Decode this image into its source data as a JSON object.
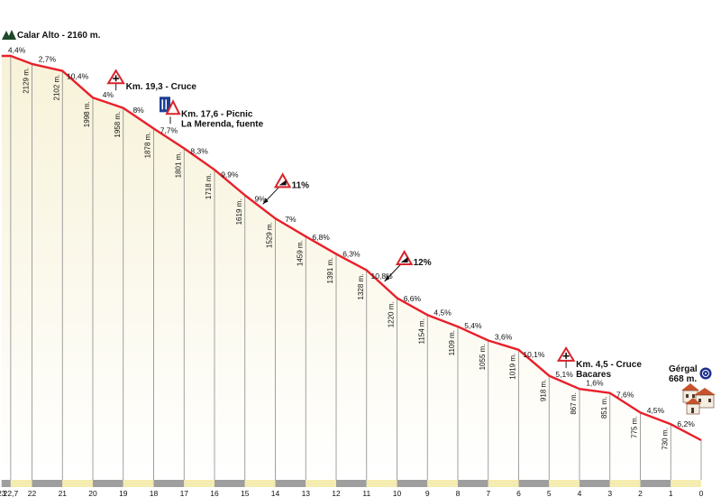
{
  "summit": {
    "label": "Calar Alto - 2160 m."
  },
  "town": {
    "name": "Gérgal",
    "altitude": "668 m."
  },
  "colors": {
    "profile_line": "#e8202a",
    "fill_top": "#f7f2d8",
    "fill_bottom": "#ffffff",
    "grid": "#8a8a8a",
    "base_gray": "#9e9e9e",
    "base_yellow": "#f4ecb0"
  },
  "chart_data": {
    "type": "area",
    "title": "Calar Alto - 2160 m.",
    "xlabel": "",
    "ylabel": "",
    "x_reversed": true,
    "xlim": [
      0,
      23.3
    ],
    "ylim": [
      0,
      2250
    ],
    "km_ticks": [
      "23",
      "22,7",
      "22",
      "21",
      "20",
      "19",
      "18",
      "17",
      "16",
      "15",
      "14",
      "13",
      "12",
      "11",
      "10",
      "9",
      "8",
      "7",
      "6",
      "5",
      "4",
      "3",
      "2",
      "1",
      "0"
    ],
    "km_values": [
      23,
      22.7,
      22,
      21,
      20,
      19,
      18,
      17,
      16,
      15,
      14,
      13,
      12,
      11,
      10,
      9,
      8,
      7,
      6,
      5,
      4,
      3,
      2,
      1,
      0
    ],
    "altitudes": [
      2160,
      2160,
      2129,
      2102,
      1998,
      1958,
      1878,
      1801,
      1718,
      1619,
      1529,
      1459,
      1391,
      1328,
      1220,
      1154,
      1109,
      1055,
      1019,
      918,
      867,
      851,
      775,
      730,
      668
    ],
    "altitude_labels": [
      {
        "km": 22,
        "text": "2129 m."
      },
      {
        "km": 21,
        "text": "2102 m."
      },
      {
        "km": 20,
        "text": "1998 m."
      },
      {
        "km": 19,
        "text": "1958 m."
      },
      {
        "km": 18,
        "text": "1878 m."
      },
      {
        "km": 17,
        "text": "1801 m."
      },
      {
        "km": 16,
        "text": "1718 m."
      },
      {
        "km": 15,
        "text": "1619 m."
      },
      {
        "km": 14,
        "text": "1529 m."
      },
      {
        "km": 13,
        "text": "1459 m."
      },
      {
        "km": 12,
        "text": "1391 m."
      },
      {
        "km": 11,
        "text": "1328 m."
      },
      {
        "km": 10,
        "text": "1220 m."
      },
      {
        "km": 9,
        "text": "1154 m."
      },
      {
        "km": 8,
        "text": "1109 m."
      },
      {
        "km": 7,
        "text": "1055 m."
      },
      {
        "km": 6,
        "text": "1019 m."
      },
      {
        "km": 5,
        "text": "918 m."
      },
      {
        "km": 4,
        "text": "867 m."
      },
      {
        "km": 3,
        "text": "851 m."
      },
      {
        "km": 2,
        "text": "775 m."
      },
      {
        "km": 1,
        "text": "730 m."
      }
    ],
    "gradients": [
      {
        "km": 22.5,
        "text": "4,4%"
      },
      {
        "km": 21.5,
        "text": "2,7%"
      },
      {
        "km": 20.5,
        "text": "10,4%"
      },
      {
        "km": 19.5,
        "text": "4%"
      },
      {
        "km": 18.5,
        "text": "8%"
      },
      {
        "km": 17.5,
        "text": "7,7%"
      },
      {
        "km": 16.5,
        "text": "8,3%"
      },
      {
        "km": 15.5,
        "text": "9,9%"
      },
      {
        "km": 14.5,
        "text": "9%"
      },
      {
        "km": 13.5,
        "text": "7%"
      },
      {
        "km": 12.5,
        "text": "6,8%"
      },
      {
        "km": 11.5,
        "text": "6,3%"
      },
      {
        "km": 10.5,
        "text": "10,8%"
      },
      {
        "km": 9.5,
        "text": "6,6%"
      },
      {
        "km": 8.5,
        "text": "4,5%"
      },
      {
        "km": 7.5,
        "text": "5,4%"
      },
      {
        "km": 6.5,
        "text": "3,6%"
      },
      {
        "km": 5.5,
        "text": "10,1%"
      },
      {
        "km": 4.5,
        "text": "5,1%"
      },
      {
        "km": 3.5,
        "text": "1,6%"
      },
      {
        "km": 2.5,
        "text": "7,6%"
      },
      {
        "km": 1.5,
        "text": "4,5%"
      },
      {
        "km": 0.5,
        "text": "6,2%"
      }
    ],
    "annotations": [
      {
        "km": 19.3,
        "icon": "crossroads-warning-sign-icon",
        "lines": [
          "Km. 19,3 - Cruce"
        ]
      },
      {
        "km": 17.6,
        "icon": "picnic-area-sign-icon",
        "lines": [
          "Km. 17,6 - Picnic",
          "La Merenda, fuente"
        ]
      },
      {
        "km": 4.5,
        "icon": "crossroads-warning-sign-icon",
        "lines": [
          "Km. 4,5 - Cruce",
          "Bacares"
        ]
      }
    ],
    "steep_markers": [
      {
        "km": 14.5,
        "text": "11%"
      },
      {
        "km": 10.5,
        "text": "12%"
      }
    ]
  }
}
